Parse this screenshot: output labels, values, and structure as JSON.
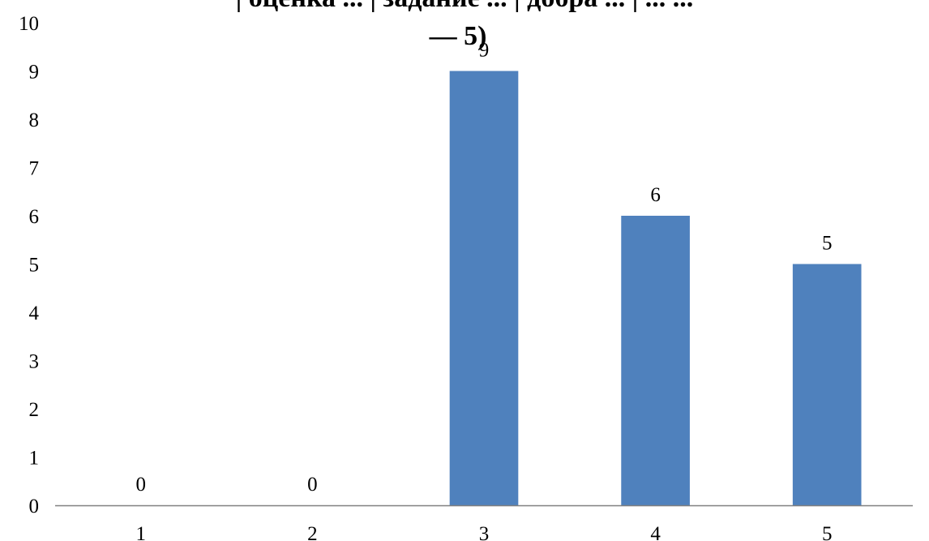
{
  "chart_data": {
    "type": "bar",
    "title_top": "| оценка ... | задание ... | добра ... | ... ...",
    "title_bottom": "— 5)",
    "categories": [
      "1",
      "2",
      "3",
      "4",
      "5"
    ],
    "values": [
      0,
      0,
      9,
      6,
      5
    ],
    "data_labels": [
      "0",
      "0",
      "9",
      "6",
      "5"
    ],
    "ylim": [
      0,
      10
    ],
    "y_ticks": [
      "0",
      "1",
      "2",
      "3",
      "4",
      "5",
      "6",
      "7",
      "8",
      "9",
      "10"
    ],
    "xlabel": "",
    "ylabel": "",
    "grid": false,
    "legend": "none",
    "bar_color": "#4f81bd",
    "axis_color": "#808080"
  }
}
